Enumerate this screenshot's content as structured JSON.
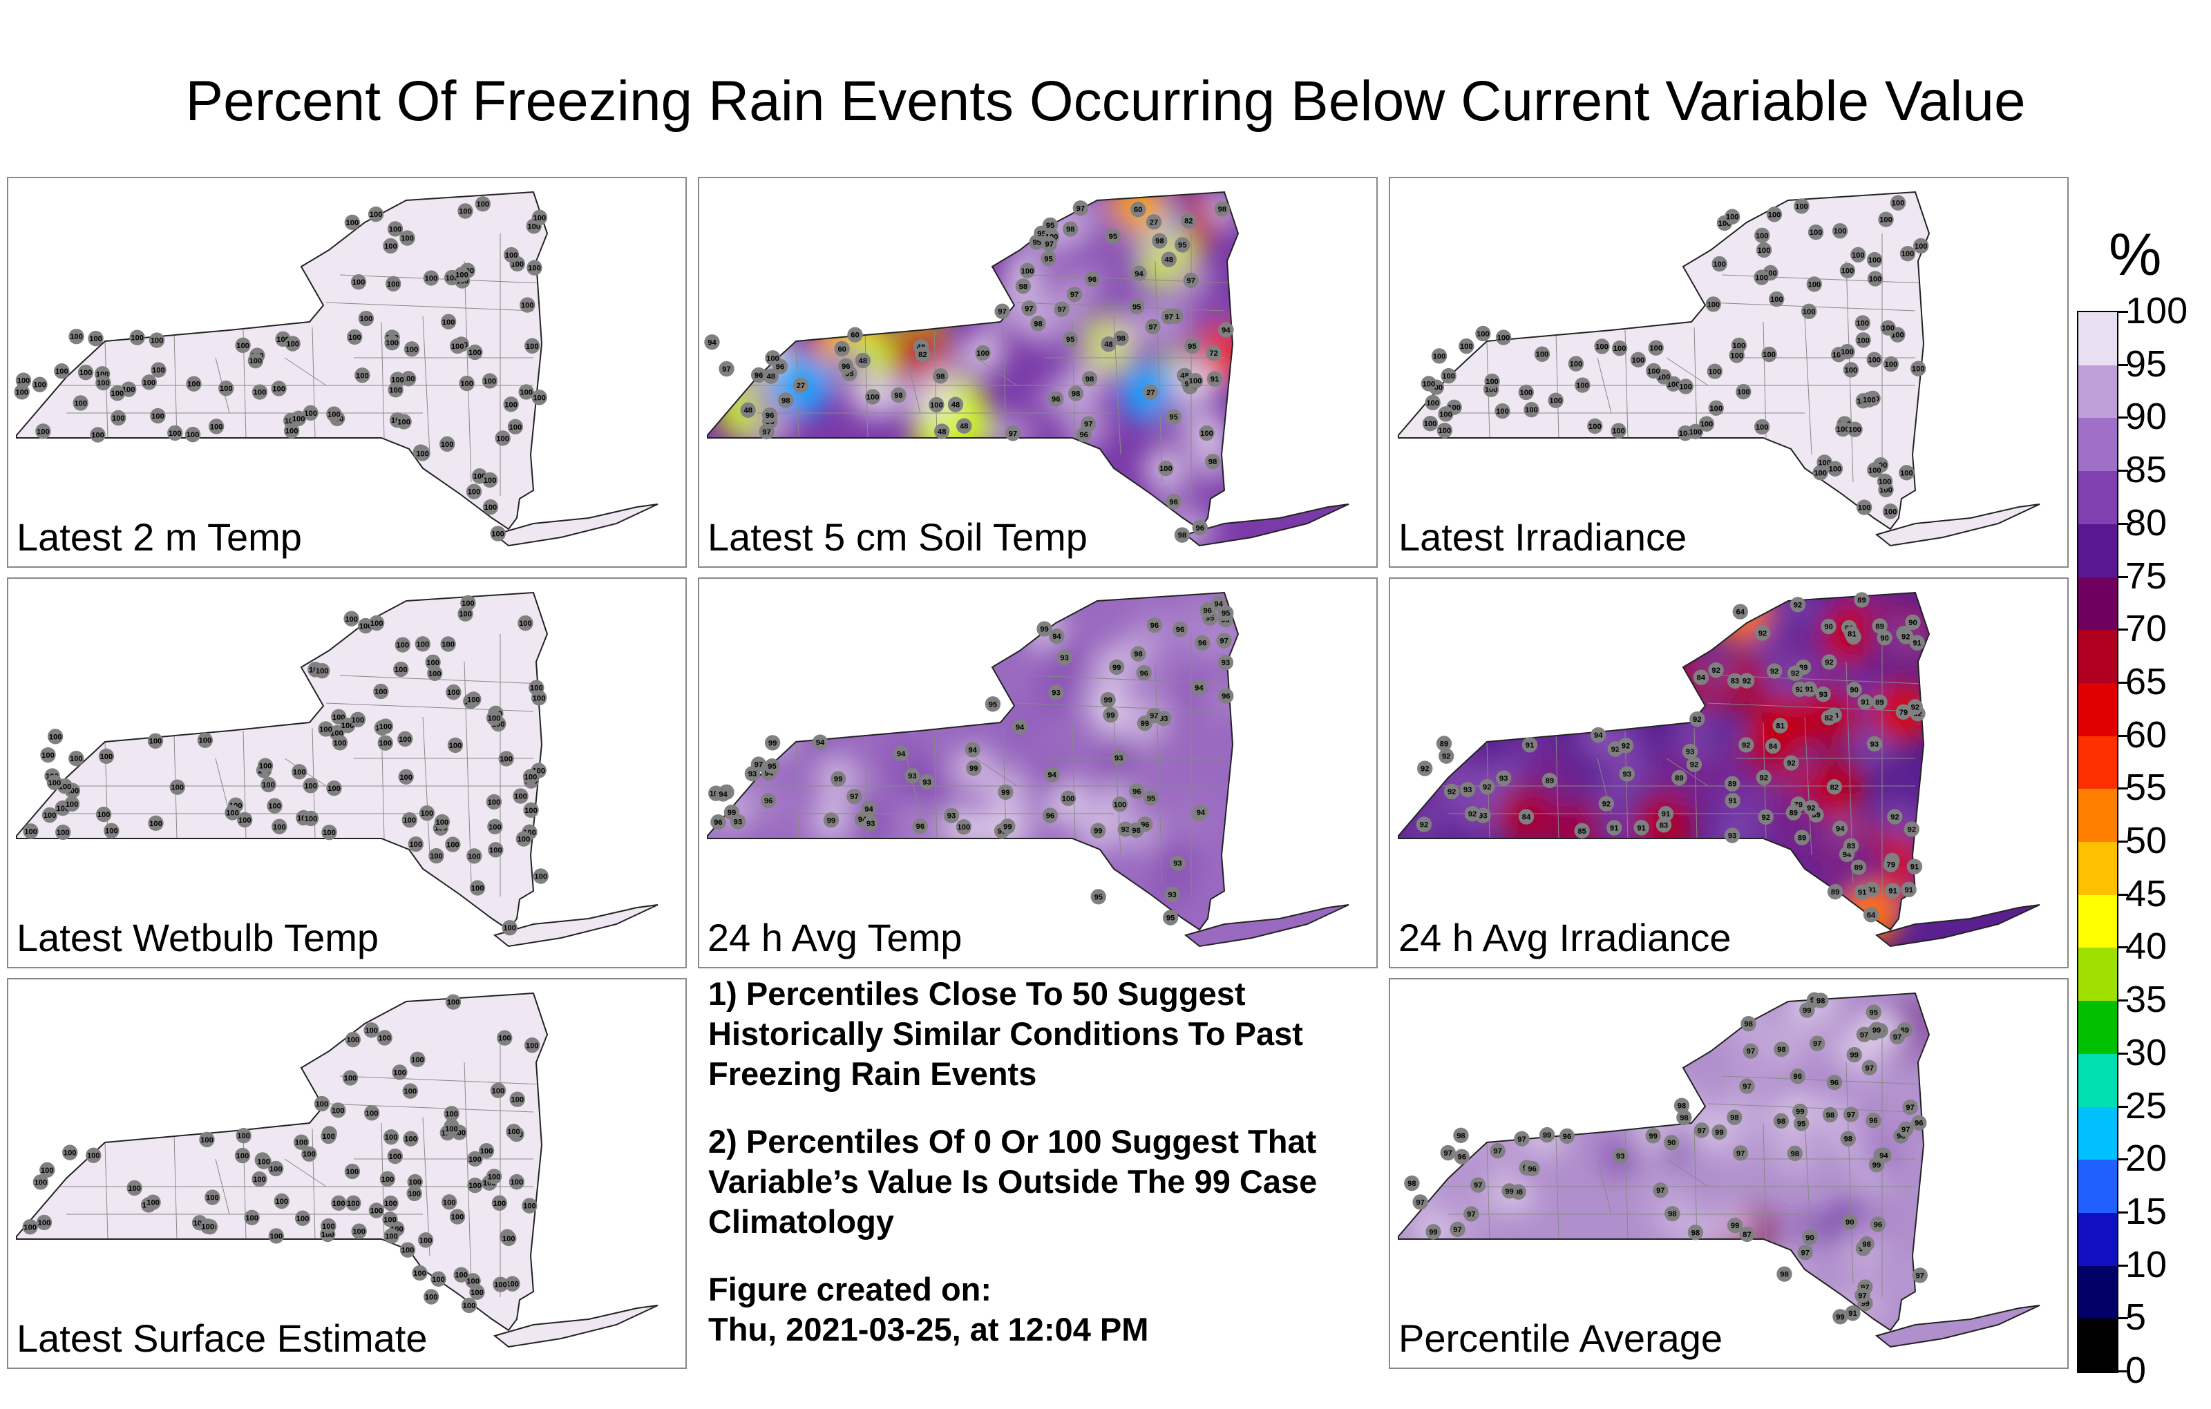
{
  "title": "Percent Of Freezing Rain Events Occurring Below Current Variable Value",
  "panels": [
    {
      "label": "Latest 2 m Temp",
      "type": "uniform",
      "stations": [
        "100",
        "100",
        "100",
        "100",
        "100",
        "100",
        "100",
        "100",
        "100",
        "100",
        "100",
        "100",
        "100",
        "100",
        "100",
        "100",
        "100",
        "100",
        "100",
        "100",
        "100",
        "100",
        "100",
        "100",
        "100",
        "100",
        "100",
        "100",
        "100",
        "100",
        "100",
        "100",
        "100",
        "100",
        "100",
        "100",
        "100",
        "100",
        "100",
        "100",
        "100",
        "100",
        "100",
        "100",
        "100",
        "100",
        "100",
        "100",
        "100",
        "100",
        "100",
        "100",
        "100",
        "100",
        "100",
        "100",
        "100",
        "100",
        "100",
        "100",
        "100",
        "100",
        "100",
        "100",
        "100",
        "100",
        "100",
        "100",
        "100",
        "100",
        "100",
        "100",
        "100",
        "100",
        "100",
        "100",
        "100",
        "100",
        "100",
        "100",
        "100",
        "100",
        "100",
        "100",
        "100",
        "100",
        "100",
        "100",
        "100",
        "100"
      ]
    },
    {
      "label": "Latest 5 cm Soil Temp",
      "type": "soil",
      "stations": [
        "95",
        "95",
        "60",
        "97",
        "94",
        "97",
        "91",
        "95",
        "82",
        "48",
        "48",
        "27",
        "27",
        "98",
        "48",
        "82",
        "91",
        "60",
        "72",
        "96",
        "48",
        "48",
        "60",
        "48",
        "48",
        "95",
        "94",
        "48",
        "48",
        "48",
        "95",
        "98",
        "96",
        "95",
        "97",
        "94",
        "96",
        "95",
        "100",
        "100",
        "98",
        "100",
        "100",
        "98",
        "98",
        "100",
        "100",
        "95",
        "98",
        "97",
        "97",
        "96",
        "98",
        "95",
        "98",
        "94",
        "97",
        "96",
        "98",
        "96",
        "97",
        "97",
        "98",
        "27",
        "98",
        "97",
        "96",
        "98",
        "100",
        "100",
        "97",
        "100",
        "98",
        "98",
        "100",
        "96",
        "97",
        "95",
        "96",
        "97",
        "97",
        "95"
      ]
    },
    {
      "label": "Latest Irradiance",
      "type": "uniform",
      "stations": [
        "100",
        "100",
        "100",
        "100",
        "100",
        "100",
        "100",
        "100",
        "100",
        "100",
        "100",
        "100",
        "100",
        "100",
        "100",
        "100",
        "100",
        "100",
        "100",
        "100",
        "100",
        "100",
        "100",
        "100",
        "100",
        "100",
        "100",
        "100",
        "100",
        "100",
        "100",
        "100",
        "100",
        "100",
        "100",
        "100",
        "100",
        "100",
        "100",
        "100",
        "100",
        "100",
        "100",
        "100",
        "100",
        "100",
        "100",
        "100",
        "100",
        "100",
        "100",
        "100",
        "100",
        "100",
        "100",
        "100",
        "100",
        "100",
        "100",
        "100",
        "100",
        "100",
        "100",
        "100",
        "100",
        "100",
        "100",
        "100",
        "100",
        "100",
        "100",
        "100",
        "100",
        "100",
        "100",
        "100",
        "100",
        "100",
        "100",
        "100",
        "100",
        "100",
        "100",
        "100",
        "100",
        "100",
        "100",
        "100",
        "100",
        "100"
      ]
    },
    {
      "label": "Latest Wetbulb Temp",
      "type": "uniform",
      "stations": [
        "100",
        "100",
        "100",
        "100",
        "100",
        "100",
        "100",
        "100",
        "100",
        "100",
        "100",
        "100",
        "100",
        "100",
        "100",
        "100",
        "100",
        "100",
        "100",
        "100",
        "100",
        "100",
        "100",
        "100",
        "100",
        "100",
        "100",
        "100",
        "100",
        "100",
        "100",
        "100",
        "100",
        "100",
        "100",
        "100",
        "100",
        "100",
        "100",
        "100",
        "100",
        "100",
        "100",
        "100",
        "100",
        "100",
        "100",
        "100",
        "100",
        "100",
        "100",
        "100",
        "100",
        "100",
        "100",
        "100",
        "100",
        "100",
        "100",
        "100",
        "100",
        "100",
        "100",
        "100",
        "100",
        "100",
        "100",
        "100",
        "100",
        "100",
        "100",
        "100",
        "100",
        "100",
        "100",
        "100",
        "100",
        "100",
        "100",
        "100",
        "100",
        "100",
        "100",
        "100",
        "100",
        "100",
        "100",
        "100",
        "100",
        "100"
      ]
    },
    {
      "label": "24 h Avg Temp",
      "type": "avgtemp",
      "stations": [
        "100",
        "100",
        "93",
        "99",
        "94",
        "96",
        "100",
        "93",
        "93",
        "96",
        "99",
        "94",
        "93",
        "93",
        "93",
        "93",
        "94",
        "94",
        "93",
        "95",
        "94",
        "93",
        "93",
        "94",
        "94",
        "96",
        "93",
        "94",
        "94",
        "95",
        "99",
        "99",
        "99",
        "96",
        "98",
        "99",
        "96",
        "95",
        "94",
        "99",
        "95",
        "96",
        "93",
        "97",
        "94",
        "96",
        "99",
        "99",
        "98",
        "97",
        "96",
        "93",
        "93",
        "99",
        "96",
        "99",
        "100",
        "95",
        "96",
        "99",
        "98",
        "97",
        "99",
        "99",
        "96",
        "97",
        "94",
        "95",
        "99",
        "95",
        "96",
        "93",
        "94"
      ]
    },
    {
      "label": "24 h Avg Irradiance",
      "type": "irr",
      "stations": [
        "92",
        "92",
        "92",
        "92",
        "92",
        "91",
        "93",
        "92",
        "92",
        "89",
        "92",
        "89",
        "92",
        "90",
        "91",
        "90",
        "91",
        "92",
        "93",
        "93",
        "94",
        "92",
        "93",
        "93",
        "92",
        "91",
        "91",
        "92",
        "92",
        "93",
        "85",
        "89",
        "91",
        "89",
        "94",
        "92",
        "89",
        "92",
        "93",
        "92",
        "93",
        "92",
        "92",
        "91",
        "89",
        "89",
        "91",
        "92",
        "89",
        "92",
        "93",
        "92",
        "92",
        "91",
        "89",
        "92",
        "91",
        "83",
        "79",
        "94",
        "89",
        "89",
        "90",
        "92",
        "91",
        "92",
        "91",
        "90",
        "89",
        "94",
        "84",
        "79",
        "89",
        "64",
        "81",
        "83",
        "83",
        "64",
        "82",
        "84",
        "90",
        "84",
        "82",
        "84",
        "91",
        "92",
        "92",
        "92",
        "81",
        "79",
        "92"
      ]
    },
    {
      "label": "Latest Surface Estimate",
      "type": "uniform",
      "stations": [
        "100",
        "100",
        "100",
        "100",
        "100",
        "100",
        "100",
        "100",
        "100",
        "100",
        "100",
        "100",
        "100",
        "100",
        "100",
        "100",
        "100",
        "100",
        "100",
        "100",
        "100",
        "100",
        "100",
        "100",
        "100",
        "100",
        "100",
        "100",
        "100",
        "100",
        "100",
        "100",
        "100",
        "100",
        "100",
        "100",
        "100",
        "100",
        "100",
        "100",
        "100",
        "100",
        "100",
        "100",
        "100",
        "100",
        "100",
        "100",
        "100",
        "100",
        "100",
        "100",
        "100",
        "100",
        "100",
        "100",
        "100",
        "100",
        "100",
        "100",
        "100",
        "100",
        "100",
        "100",
        "100",
        "100",
        "100",
        "100",
        "100",
        "100",
        "100",
        "100",
        "100",
        "100",
        "100",
        "100",
        "100",
        "100",
        "100",
        "100",
        "100",
        "100",
        "100",
        "100",
        "100",
        "100",
        "100",
        "100",
        "100",
        "100"
      ]
    },
    {
      "label": "Percentile Average",
      "type": "avg",
      "stations": [
        "98",
        "98",
        "97",
        "98",
        "97",
        "95",
        "91",
        "96",
        "89",
        "97",
        "87",
        "97",
        "98",
        "90",
        "95",
        "90",
        "97",
        "97",
        "98",
        "99",
        "99",
        "98",
        "99",
        "90",
        "97",
        "97",
        "99",
        "99",
        "99",
        "98",
        "99",
        "99",
        "97",
        "97",
        "97",
        "98",
        "97",
        "99",
        "97",
        "98",
        "98",
        "98",
        "97",
        "97",
        "97",
        "96",
        "97",
        "99",
        "98",
        "98",
        "98",
        "97",
        "97",
        "99",
        "96",
        "97",
        "99",
        "98",
        "98",
        "97",
        "96",
        "99",
        "99",
        "98",
        "93",
        "97",
        "96",
        "97",
        "97",
        "94",
        "99",
        "98",
        "97",
        "96",
        "96",
        "96",
        "98",
        "99"
      ]
    }
  ],
  "notes": [
    "1) Percentiles Close To 50 Suggest Historically Similar Conditions To Past Freezing Rain Events",
    "2) Percentiles Of 0 Or 100 Suggest That Variable’s Value Is Outside The 99 Case Climatology",
    "Figure created on:",
    "Thu, 2021-03-25, at 12:04 PM"
  ],
  "colorbar": {
    "unit": "%",
    "ticks": [
      "100",
      "95",
      "90",
      "85",
      "80",
      "75",
      "70",
      "65",
      "60",
      "55",
      "50",
      "45",
      "40",
      "35",
      "30",
      "25",
      "20",
      "15",
      "10",
      "5",
      "0"
    ],
    "colors": [
      "#000000",
      "#000066",
      "#1010c0",
      "#2060ff",
      "#00c0ff",
      "#00e0b0",
      "#00c000",
      "#a0e000",
      "#ffff00",
      "#ffc000",
      "#ff8000",
      "#ff3000",
      "#e00000",
      "#b00020",
      "#700060",
      "#581890",
      "#8040b0",
      "#a070c8",
      "#c0a0d8",
      "#e8e0f0"
    ]
  },
  "palette": {
    "base_uniform": "#efe8f3",
    "border": "#555555",
    "station_fill": "#808080"
  }
}
